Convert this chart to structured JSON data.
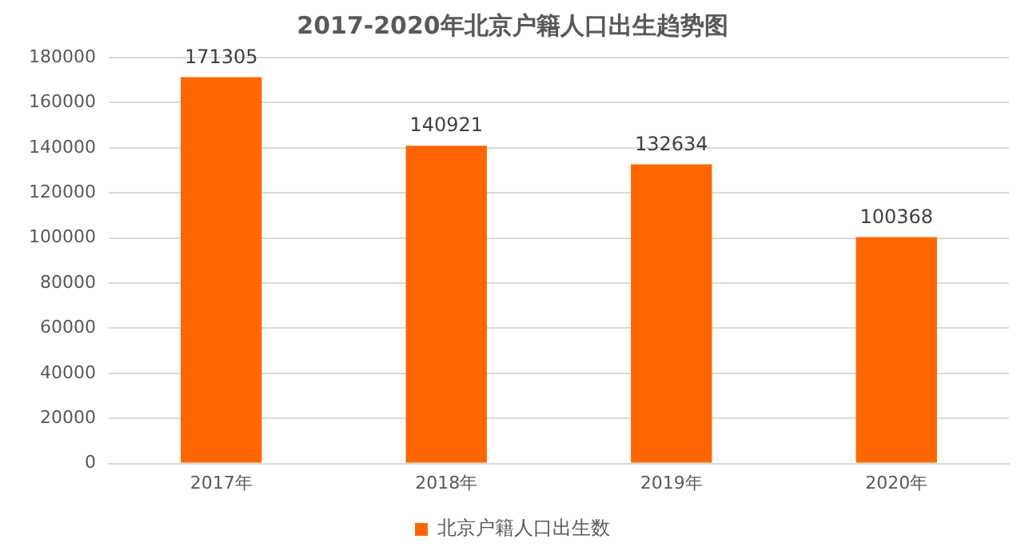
{
  "chart_data": {
    "type": "bar",
    "title": "2017-2020年北京户籍人口出生趋势图",
    "categories": [
      "2017年",
      "2018年",
      "2019年",
      "2020年"
    ],
    "series": [
      {
        "name": "北京户籍人口出生数",
        "color": "#ff6600",
        "values": [
          171305,
          140921,
          132634,
          100368
        ]
      }
    ],
    "ylim": [
      0,
      180000
    ],
    "yticks": [
      0,
      20000,
      40000,
      60000,
      80000,
      100000,
      120000,
      140000,
      160000,
      180000
    ],
    "grid": "y",
    "legend": "bottom",
    "data_labels": true
  }
}
